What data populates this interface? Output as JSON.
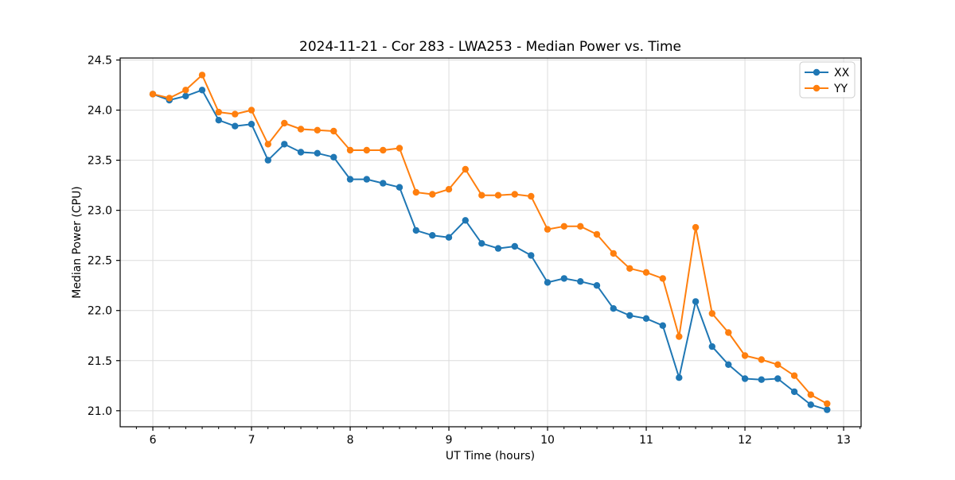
{
  "chart_data": {
    "type": "line",
    "title": "2024-11-21 - Cor 283 - LWA253 - Median Power vs. Time",
    "xlabel": "UT Time (hours)",
    "ylabel": "Median Power (CPU)",
    "x": [
      6.0,
      6.167,
      6.333,
      6.5,
      6.667,
      6.833,
      7.0,
      7.167,
      7.333,
      7.5,
      7.667,
      7.833,
      8.0,
      8.167,
      8.333,
      8.5,
      8.667,
      8.833,
      9.0,
      9.167,
      9.333,
      9.5,
      9.667,
      9.833,
      10.0,
      10.167,
      10.333,
      10.5,
      10.667,
      10.833,
      11.0,
      11.167,
      11.333,
      11.5,
      11.667,
      11.833,
      12.0,
      12.167,
      12.333,
      12.5,
      12.667,
      12.833
    ],
    "series": [
      {
        "name": "XX",
        "color": "#1f77b4",
        "values": [
          24.16,
          24.1,
          24.14,
          24.2,
          23.9,
          23.84,
          23.86,
          23.5,
          23.66,
          23.58,
          23.57,
          23.53,
          23.31,
          23.31,
          23.27,
          23.23,
          22.8,
          22.75,
          22.73,
          22.9,
          22.67,
          22.62,
          22.64,
          22.55,
          22.28,
          22.32,
          22.29,
          22.25,
          22.02,
          21.95,
          21.92,
          21.85,
          21.33,
          22.09,
          21.64,
          21.46,
          21.32,
          21.31,
          21.32,
          21.19,
          21.06,
          21.01
        ]
      },
      {
        "name": "YY",
        "color": "#ff7f0e",
        "values": [
          24.16,
          24.12,
          24.2,
          24.35,
          23.98,
          23.96,
          24.0,
          23.66,
          23.87,
          23.81,
          23.8,
          23.79,
          23.6,
          23.6,
          23.6,
          23.62,
          23.18,
          23.16,
          23.21,
          23.41,
          23.15,
          23.15,
          23.16,
          23.14,
          22.81,
          22.84,
          22.84,
          22.76,
          22.57,
          22.42,
          22.38,
          22.32,
          21.74,
          22.83,
          21.97,
          21.78,
          21.55,
          21.51,
          21.46,
          21.35,
          21.16,
          21.07
        ]
      }
    ],
    "xlim": [
      5.669,
      13.177
    ],
    "ylim": [
      20.84,
      24.52
    ],
    "xticks": {
      "values": [
        6,
        7,
        8,
        9,
        10,
        11,
        12,
        13
      ],
      "labels": [
        "6",
        "7",
        "8",
        "9",
        "10",
        "11",
        "12",
        "13"
      ]
    },
    "yticks": {
      "values": [
        21.0,
        21.5,
        22.0,
        22.5,
        23.0,
        23.5,
        24.0,
        24.5
      ],
      "labels": [
        "21.0",
        "21.5",
        "22.0",
        "22.5",
        "23.0",
        "23.5",
        "24.0",
        "24.5"
      ]
    },
    "x_minor_interval": 0.16667,
    "grid": true,
    "legend_position": "upper right"
  },
  "colors": {
    "background": "#ffffff",
    "grid": "#dcdcdc",
    "spine": "#000000",
    "tick": "#000000",
    "legend_border": "#cccccc",
    "legend_fill": "#ffffff"
  }
}
